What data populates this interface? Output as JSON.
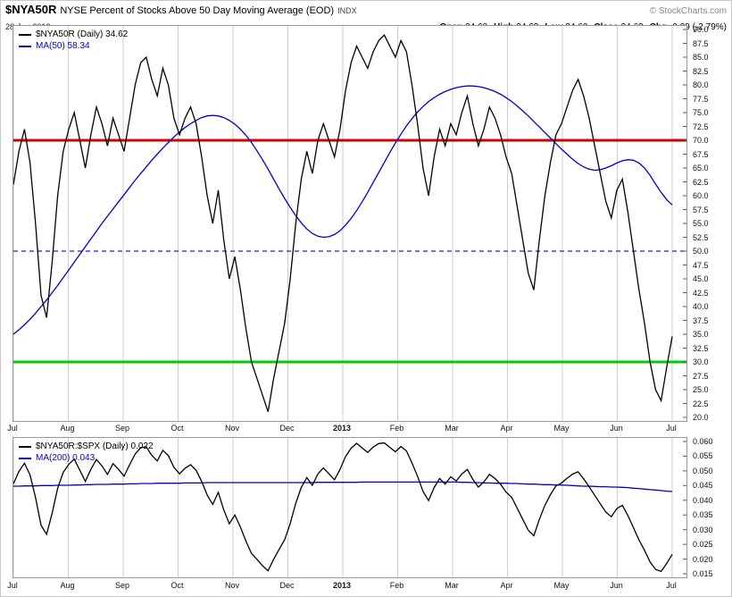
{
  "header": {
    "symbol": "$NYA50R",
    "title": "NYSE Percent of Stocks Above 50 Day Moving Average (EOD)",
    "exchange": "INDX",
    "copyright": "© StockCharts.com",
    "date": "28-Jun-2013",
    "quote": {
      "open_label": "Open",
      "open": "34.62",
      "high_label": "High",
      "high": "34.62",
      "low_label": "Low",
      "low": "34.62",
      "close_label": "Close",
      "close": "34.62",
      "chg_label": "Chg",
      "chg": "-0.99 (-2.79%)"
    }
  },
  "chart_data": [
    {
      "type": "line",
      "panel": "main",
      "title": "$NYA50R (Daily)",
      "x_tick_labels": [
        "Jul",
        "Aug",
        "Sep",
        "Oct",
        "Nov",
        "Dec",
        "2013",
        "Feb",
        "Mar",
        "Apr",
        "May",
        "Jun",
        "Jul"
      ],
      "bold_x_label": "2013",
      "ylim": [
        20,
        90
      ],
      "y_tick_labels": [
        "90.0",
        "87.5",
        "85.0",
        "82.5",
        "80.0",
        "77.5",
        "75.0",
        "72.5",
        "70.0",
        "67.5",
        "65.0",
        "62.5",
        "60.0",
        "57.5",
        "55.0",
        "52.5",
        "50.0",
        "47.5",
        "45.0",
        "42.5",
        "40.0",
        "37.5",
        "35.0",
        "32.5",
        "30.0",
        "27.5",
        "25.0",
        "22.5",
        "20.0"
      ],
      "grid_color": "#cccccc",
      "legend_position": "top-left",
      "hlines": [
        {
          "y": 70,
          "color": "#cc0000",
          "width": 3,
          "style": "solid"
        },
        {
          "y": 50,
          "color": "#2222cc",
          "width": 1.2,
          "style": "dashed"
        },
        {
          "y": 30,
          "color": "#00cc00",
          "width": 3,
          "style": "solid"
        }
      ],
      "legend": [
        {
          "label": "$NYA50R (Daily) 34.62",
          "color": "#000000"
        },
        {
          "label": "MA(50) 58.34",
          "color": "#0000cc"
        }
      ],
      "series": [
        {
          "name": "NYA50R",
          "color": "#000000",
          "values": [
            62,
            68,
            72,
            66,
            55,
            42,
            38,
            48,
            60,
            68,
            72,
            75,
            70,
            65,
            71,
            76,
            73,
            69,
            74,
            71,
            68,
            74,
            80,
            84,
            85,
            81,
            78,
            83,
            80,
            74,
            71,
            74,
            76,
            73,
            67,
            60,
            55,
            61,
            52,
            45,
            49,
            43,
            36,
            30,
            27,
            24,
            21,
            27,
            32,
            37,
            45,
            55,
            63,
            68,
            64,
            70,
            73,
            70,
            67,
            72,
            79,
            84,
            87,
            85,
            83,
            86,
            88,
            89,
            87,
            85,
            88,
            86,
            80,
            73,
            65,
            60,
            67,
            72,
            69,
            73,
            71,
            75,
            78,
            73,
            69,
            72,
            76,
            74,
            71,
            67,
            64,
            58,
            52,
            46,
            43,
            52,
            60,
            66,
            71,
            73,
            76,
            79,
            81,
            78,
            74,
            69,
            64,
            59,
            56,
            61,
            63,
            57,
            50,
            43,
            37,
            30,
            25,
            23,
            29,
            34.62
          ]
        },
        {
          "name": "MA50",
          "color": "#0000cc",
          "values": [
            35.0,
            35.8,
            36.7,
            37.7,
            38.8,
            40.0,
            41.2,
            42.5,
            43.8,
            45.2,
            46.6,
            48.0,
            49.4,
            50.8,
            52.2,
            53.6,
            55.0,
            56.3,
            57.6,
            58.9,
            60.2,
            61.5,
            62.8,
            64.0,
            65.2,
            66.4,
            67.5,
            68.6,
            69.6,
            70.6,
            71.5,
            72.3,
            73.0,
            73.6,
            74.1,
            74.4,
            74.5,
            74.4,
            74.1,
            73.6,
            72.9,
            72.0,
            70.9,
            69.6,
            68.1,
            66.5,
            64.8,
            63.0,
            61.2,
            59.5,
            57.9,
            56.4,
            55.1,
            54.0,
            53.2,
            52.7,
            52.5,
            52.6,
            53.0,
            53.7,
            54.7,
            55.9,
            57.3,
            58.9,
            60.6,
            62.4,
            64.2,
            66.0,
            67.8,
            69.5,
            71.1,
            72.6,
            73.9,
            75.1,
            76.1,
            77.0,
            77.7,
            78.3,
            78.8,
            79.2,
            79.5,
            79.7,
            79.8,
            79.8,
            79.7,
            79.5,
            79.2,
            78.8,
            78.3,
            77.7,
            77.0,
            76.2,
            75.3,
            74.4,
            73.4,
            72.4,
            71.4,
            70.4,
            69.4,
            68.4,
            67.5,
            66.6,
            65.8,
            65.2,
            64.8,
            64.6,
            64.7,
            65.0,
            65.4,
            65.9,
            66.3,
            66.5,
            66.4,
            65.9,
            65.0,
            63.7,
            62.1,
            60.6,
            59.3,
            58.34
          ]
        }
      ]
    },
    {
      "type": "line",
      "panel": "lower",
      "title": "$NYA50R:$SPX (Daily)",
      "x_tick_labels": [
        "Jul",
        "Aug",
        "Sep",
        "Oct",
        "Nov",
        "Dec",
        "2013",
        "Feb",
        "Mar",
        "Apr",
        "May",
        "Jun",
        "Jul"
      ],
      "bold_x_label": "2013",
      "ylim": [
        0.015,
        0.06
      ],
      "y_tick_labels": [
        "0.060",
        "0.055",
        "0.050",
        "0.045",
        "0.040",
        "0.035",
        "0.030",
        "0.025",
        "0.020",
        "0.015"
      ],
      "grid_color": "#cccccc",
      "legend_position": "top-left",
      "hlines": [],
      "legend": [
        {
          "label": "$NYA50R:$SPX (Daily) 0.022",
          "color": "#000000"
        },
        {
          "label": "MA(200) 0.043",
          "color": "#0000cc"
        }
      ],
      "series": [
        {
          "name": "NYA50R-SPX-ratio",
          "color": "#000000",
          "values": [
            0.0456,
            0.0498,
            0.0526,
            0.0487,
            0.0409,
            0.0315,
            0.0284,
            0.0356,
            0.0441,
            0.0495,
            0.0522,
            0.054,
            0.0502,
            0.0464,
            0.0505,
            0.0539,
            0.0517,
            0.0488,
            0.0525,
            0.0505,
            0.0482,
            0.0521,
            0.0557,
            0.0579,
            0.0582,
            0.0553,
            0.0534,
            0.057,
            0.0552,
            0.0512,
            0.049,
            0.0509,
            0.0521,
            0.0502,
            0.0464,
            0.0418,
            0.0386,
            0.0427,
            0.0367,
            0.032,
            0.035,
            0.0309,
            0.0261,
            0.0219,
            0.0199,
            0.0177,
            0.016,
            0.0199,
            0.0233,
            0.0266,
            0.0321,
            0.039,
            0.0444,
            0.0477,
            0.0451,
            0.049,
            0.051,
            0.049,
            0.047,
            0.0505,
            0.0549,
            0.0577,
            0.0594,
            0.0578,
            0.0563,
            0.0581,
            0.0593,
            0.0595,
            0.058,
            0.0565,
            0.0583,
            0.0568,
            0.0527,
            0.0482,
            0.043,
            0.0399,
            0.0443,
            0.0474,
            0.0455,
            0.048,
            0.0466,
            0.0489,
            0.0505,
            0.0471,
            0.0445,
            0.0463,
            0.0488,
            0.0474,
            0.0455,
            0.0428,
            0.041,
            0.0373,
            0.0335,
            0.0298,
            0.0279,
            0.0335,
            0.0383,
            0.0419,
            0.0449,
            0.0459,
            0.0475,
            0.0489,
            0.0497,
            0.0473,
            0.0446,
            0.0417,
            0.0388,
            0.036,
            0.0344,
            0.0372,
            0.0383,
            0.0348,
            0.0307,
            0.0265,
            0.023,
            0.019,
            0.0165,
            0.0158,
            0.0185,
            0.0216
          ]
        },
        {
          "name": "MA200",
          "color": "#0000cc",
          "values": [
            0.0448,
            0.0448,
            0.0449,
            0.0449,
            0.0449,
            0.045,
            0.045,
            0.045,
            0.0451,
            0.0451,
            0.0451,
            0.0452,
            0.0452,
            0.0453,
            0.0453,
            0.0454,
            0.0454,
            0.0454,
            0.0455,
            0.0455,
            0.0455,
            0.0456,
            0.0456,
            0.0457,
            0.0457,
            0.0457,
            0.0458,
            0.0458,
            0.0458,
            0.0458,
            0.0458,
            0.0459,
            0.0459,
            0.0459,
            0.0459,
            0.046,
            0.046,
            0.046,
            0.046,
            0.046,
            0.046,
            0.046,
            0.046,
            0.046,
            0.046,
            0.046,
            0.046,
            0.046,
            0.046,
            0.046,
            0.046,
            0.046,
            0.046,
            0.046,
            0.046,
            0.0461,
            0.0461,
            0.0461,
            0.0461,
            0.0461,
            0.0461,
            0.0461,
            0.0461,
            0.0462,
            0.0462,
            0.0462,
            0.0462,
            0.0462,
            0.0462,
            0.0462,
            0.0462,
            0.0462,
            0.0462,
            0.0462,
            0.0462,
            0.0462,
            0.0462,
            0.0462,
            0.0462,
            0.0462,
            0.0462,
            0.0461,
            0.0461,
            0.046,
            0.046,
            0.0459,
            0.0459,
            0.0458,
            0.0458,
            0.0458,
            0.0457,
            0.0457,
            0.0456,
            0.0455,
            0.0455,
            0.0454,
            0.0453,
            0.0453,
            0.0452,
            0.0452,
            0.0451,
            0.045,
            0.0449,
            0.0448,
            0.0448,
            0.0447,
            0.0446,
            0.0446,
            0.0445,
            0.0445,
            0.0444,
            0.0443,
            0.0441,
            0.044,
            0.0438,
            0.0436,
            0.0435,
            0.0433,
            0.0431,
            0.043
          ]
        }
      ]
    }
  ]
}
